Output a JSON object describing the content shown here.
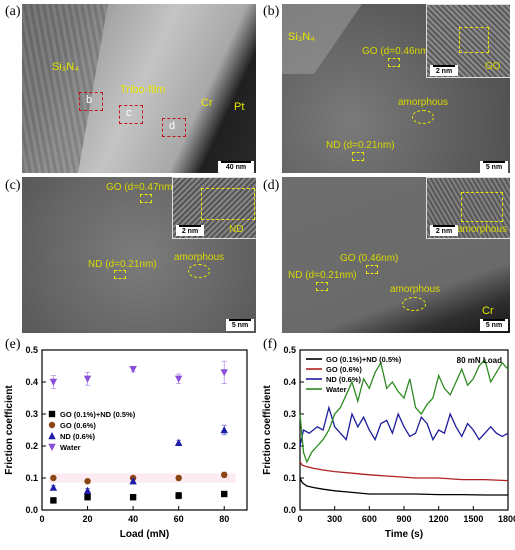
{
  "panels": {
    "a": {
      "label": "(a)",
      "texts": {
        "si3n4": "Si₃N₄",
        "tribofilm": "Tribo-film",
        "cr": "Cr",
        "pt": "Pt"
      },
      "region_labels": [
        "b",
        "c",
        "d"
      ],
      "scale": "40 nm"
    },
    "b": {
      "label": "(b)",
      "texts": {
        "si3n4": "Si₃N₄",
        "go": "GO (d=0.46nm)",
        "amorphous": "amorphous",
        "nd": "ND (d=0.21nm)"
      },
      "scale": "5 nm",
      "inset": {
        "scale": "2 nm",
        "label": "GO"
      }
    },
    "c": {
      "label": "(c)",
      "texts": {
        "go": "GO (d=0.47nm)",
        "nd": "ND (d=0.21nm)",
        "amorphous": "amorphous"
      },
      "scale": "5 nm",
      "inset": {
        "scale": "2 nm",
        "label": "ND"
      }
    },
    "d": {
      "label": "(d)",
      "texts": {
        "go": "GO (0.46nm)",
        "nd": "ND (d=0.21nm)",
        "amorphous": "amorphous",
        "cr": "Cr"
      },
      "scale": "5 nm",
      "inset": {
        "scale": "2 nm",
        "label": "amorphous"
      }
    },
    "e": {
      "label": "(e)"
    },
    "f": {
      "label": "(f)"
    }
  },
  "colors": {
    "GO_ND": "#000000",
    "GO": "#8b4513",
    "ND": "#1c1ca8",
    "Water": "#8a4fd8",
    "f_GO_ND": "#000000",
    "f_GO": "#b02020",
    "f_ND": "#1c1c9c",
    "f_Water": "#2e8b22"
  },
  "chart_data": [
    {
      "type": "scatter",
      "panel": "e",
      "xlabel": "Load (mN)",
      "ylabel": "Friction coefficient",
      "xlim": [
        0,
        90
      ],
      "ylim": [
        0.0,
        0.5
      ],
      "xticks": [
        "0",
        "20",
        "40",
        "60",
        "80"
      ],
      "yticks": [
        "0.0",
        "0.1",
        "0.2",
        "0.3",
        "0.4",
        "0.5"
      ],
      "x": [
        5,
        20,
        40,
        60,
        80
      ],
      "legend_position": "center-left",
      "series": [
        {
          "name": "GO (0.1%)+ND (0.5%)",
          "marker": "square",
          "values": [
            0.03,
            0.04,
            0.04,
            0.045,
            0.05
          ],
          "errors": [
            0.005,
            0.006,
            0.006,
            0.01,
            0.008
          ]
        },
        {
          "name": "GO (0.6%)",
          "marker": "circle",
          "values": [
            0.1,
            0.09,
            0.1,
            0.1,
            0.11
          ],
          "errors": [
            0.005,
            0.006,
            0.006,
            0.007,
            0.008
          ]
        },
        {
          "name": "ND (0.6%)",
          "marker": "triangle-up",
          "values": [
            0.07,
            0.06,
            0.09,
            0.21,
            0.25
          ],
          "errors": [
            0.006,
            0.007,
            0.008,
            0.008,
            0.015
          ]
        },
        {
          "name": "Water",
          "marker": "triangle-down",
          "values": [
            0.4,
            0.41,
            0.44,
            0.41,
            0.43
          ],
          "errors": [
            0.02,
            0.02,
            0.008,
            0.015,
            0.035
          ]
        }
      ]
    },
    {
      "type": "line",
      "panel": "f",
      "annotation": "80 mN Load",
      "xlabel": "Time (s)",
      "ylabel": "Friction coefficient",
      "xlim": [
        0,
        1800
      ],
      "ylim": [
        0.0,
        0.5
      ],
      "xticks": [
        "0",
        "300",
        "600",
        "900",
        "1200",
        "1500",
        "1800"
      ],
      "yticks": [
        "0.0",
        "0.1",
        "0.2",
        "0.3",
        "0.4",
        "0.5"
      ],
      "legend_position": "top-left",
      "series": [
        {
          "name": "GO (0.1%)+ND (0.5%)",
          "x": [
            0,
            20,
            60,
            120,
            200,
            300,
            450,
            600,
            800,
            1000,
            1200,
            1400,
            1600,
            1800
          ],
          "values": [
            0.1,
            0.085,
            0.075,
            0.07,
            0.065,
            0.06,
            0.055,
            0.05,
            0.05,
            0.05,
            0.048,
            0.048,
            0.047,
            0.047
          ]
        },
        {
          "name": "GO (0.6%)",
          "x": [
            0,
            20,
            60,
            120,
            200,
            300,
            450,
            600,
            800,
            1000,
            1200,
            1400,
            1600,
            1800
          ],
          "values": [
            0.15,
            0.14,
            0.135,
            0.13,
            0.125,
            0.12,
            0.115,
            0.11,
            0.105,
            0.1,
            0.1,
            0.095,
            0.095,
            0.092
          ]
        },
        {
          "name": "ND (0.6%)",
          "x": [
            0,
            30,
            80,
            150,
            200,
            250,
            300,
            350,
            400,
            450,
            500,
            550,
            600,
            650,
            700,
            750,
            800,
            850,
            900,
            950,
            1000,
            1050,
            1100,
            1150,
            1200,
            1250,
            1300,
            1350,
            1400,
            1450,
            1500,
            1550,
            1600,
            1650,
            1700,
            1750,
            1800
          ],
          "values": [
            0.2,
            0.25,
            0.24,
            0.26,
            0.25,
            0.32,
            0.26,
            0.24,
            0.22,
            0.3,
            0.26,
            0.29,
            0.25,
            0.22,
            0.27,
            0.28,
            0.24,
            0.3,
            0.26,
            0.23,
            0.24,
            0.29,
            0.27,
            0.22,
            0.25,
            0.24,
            0.3,
            0.26,
            0.23,
            0.27,
            0.25,
            0.22,
            0.24,
            0.26,
            0.24,
            0.23,
            0.24
          ]
        },
        {
          "name": "Water",
          "x": [
            0,
            30,
            60,
            100,
            150,
            200,
            250,
            300,
            350,
            400,
            450,
            500,
            550,
            600,
            650,
            700,
            750,
            800,
            850,
            900,
            950,
            1000,
            1050,
            1100,
            1150,
            1200,
            1250,
            1300,
            1350,
            1400,
            1450,
            1500,
            1550,
            1600,
            1650,
            1700,
            1750,
            1800
          ],
          "values": [
            0.3,
            0.18,
            0.15,
            0.18,
            0.2,
            0.22,
            0.25,
            0.3,
            0.32,
            0.36,
            0.4,
            0.34,
            0.41,
            0.38,
            0.43,
            0.46,
            0.38,
            0.4,
            0.37,
            0.35,
            0.41,
            0.32,
            0.3,
            0.33,
            0.35,
            0.42,
            0.38,
            0.36,
            0.4,
            0.44,
            0.39,
            0.41,
            0.45,
            0.47,
            0.4,
            0.43,
            0.46,
            0.44
          ]
        }
      ]
    }
  ]
}
